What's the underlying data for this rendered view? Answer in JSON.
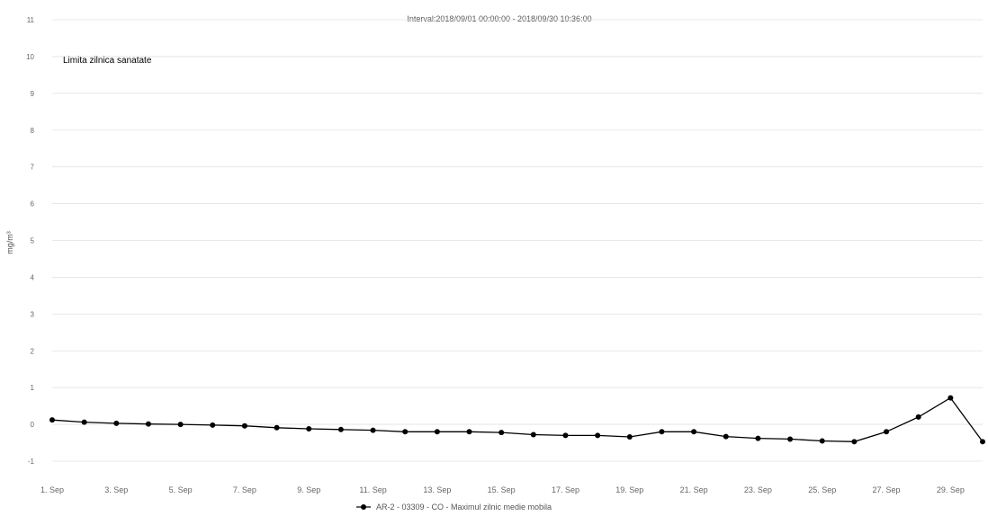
{
  "chart_data": {
    "type": "line",
    "subtitle": "Interval:2018/09/01 00:00:00 - 2018/09/30 10:36:00",
    "ylabel": "mg/m³",
    "xlabel": "",
    "ylim": [
      -1,
      11
    ],
    "y_ticks": [
      -1,
      0,
      1,
      2,
      3,
      4,
      5,
      6,
      7,
      8,
      9,
      10,
      11
    ],
    "grid": true,
    "legend_position": "bottom-center",
    "annotation": "Limita zilnica sanatate",
    "x_tick_labels": [
      "1. Sep",
      "3. Sep",
      "5. Sep",
      "7. Sep",
      "9. Sep",
      "11. Sep",
      "13. Sep",
      "15. Sep",
      "17. Sep",
      "19. Sep",
      "21. Sep",
      "23. Sep",
      "25. Sep",
      "27. Sep",
      "29. Sep"
    ],
    "x_tick_days": [
      1,
      3,
      5,
      7,
      9,
      11,
      13,
      15,
      17,
      19,
      21,
      23,
      25,
      27,
      29
    ],
    "series": [
      {
        "name": "AR-2 - 03309 - CO - Maximul zilnic medie mobila",
        "color": "#000000",
        "x": [
          1,
          2,
          3,
          4,
          5,
          6,
          7,
          8,
          9,
          10,
          11,
          12,
          13,
          14,
          15,
          16,
          17,
          18,
          19,
          20,
          21,
          22,
          23,
          24,
          25,
          26,
          27,
          28,
          29,
          30
        ],
        "values": [
          0.12,
          0.06,
          0.03,
          0.01,
          0.0,
          -0.02,
          -0.04,
          -0.09,
          -0.12,
          -0.14,
          -0.16,
          -0.2,
          -0.2,
          -0.2,
          -0.22,
          -0.28,
          -0.3,
          -0.3,
          -0.34,
          -0.2,
          -0.2,
          -0.33,
          -0.38,
          -0.4,
          -0.45,
          -0.47,
          -0.2,
          0.2,
          0.72,
          -0.47
        ]
      }
    ]
  }
}
